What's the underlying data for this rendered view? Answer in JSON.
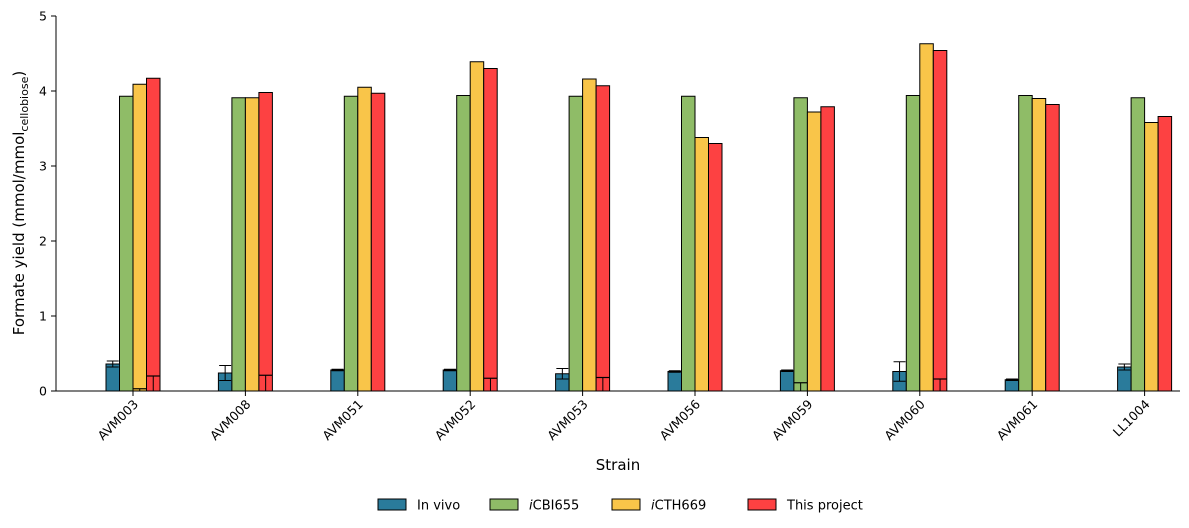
{
  "chart_data": {
    "type": "bar",
    "xlabel": "Strain",
    "ylabel": "Formate yield (mmol/mmol",
    "ylabel_sub": "cellobiose",
    "ylabel_close": ")",
    "ylim": [
      0,
      5
    ],
    "yticks": [
      "0",
      "1",
      "2",
      "3",
      "4",
      "5"
    ],
    "categories": [
      "AVM003",
      "AVM008",
      "AVM051",
      "AVM052",
      "AVM053",
      "AVM056",
      "AVM059",
      "AVM060",
      "AVM061",
      "LL1004"
    ],
    "series": [
      {
        "name": "In vivo",
        "color": "#2a7b9b",
        "values": [
          0.36,
          0.24,
          0.28,
          0.28,
          0.23,
          0.26,
          0.27,
          0.26,
          0.15,
          0.32
        ],
        "errors": [
          0.04,
          0.1,
          0.01,
          0.01,
          0.07,
          0.01,
          0.01,
          0.13,
          0.01,
          0.04
        ]
      },
      {
        "name": "iCBI655",
        "name_italic": "i",
        "name_rest": "CBI655",
        "color": "#8fbc67",
        "values": [
          3.93,
          3.91,
          3.93,
          3.94,
          3.93,
          3.93,
          3.91,
          3.94,
          3.94,
          3.91
        ],
        "inner": [
          0.01,
          0.01,
          0.01,
          0.01,
          0.01,
          0.01,
          0.11,
          0.01,
          0.01,
          0.01
        ]
      },
      {
        "name": "iCTH669",
        "name_italic": "i",
        "name_rest": "CTH669",
        "color": "#f9c549",
        "values": [
          4.09,
          3.91,
          4.05,
          4.39,
          4.16,
          3.38,
          3.72,
          4.63,
          3.9,
          3.58
        ],
        "inner": [
          0.03,
          0.01,
          0.01,
          0.01,
          0.01,
          0.01,
          0.01,
          0.01,
          0.01,
          0.01
        ]
      },
      {
        "name": "This project",
        "color": "#fd4142",
        "values": [
          4.17,
          3.98,
          3.97,
          4.3,
          4.07,
          3.3,
          3.79,
          4.54,
          3.82,
          3.66
        ],
        "inner": [
          0.2,
          0.21,
          0.01,
          0.17,
          0.18,
          0.01,
          0.01,
          0.16,
          0.01,
          0.01
        ]
      }
    ],
    "grid": false,
    "legend_position": "bottom-center"
  }
}
